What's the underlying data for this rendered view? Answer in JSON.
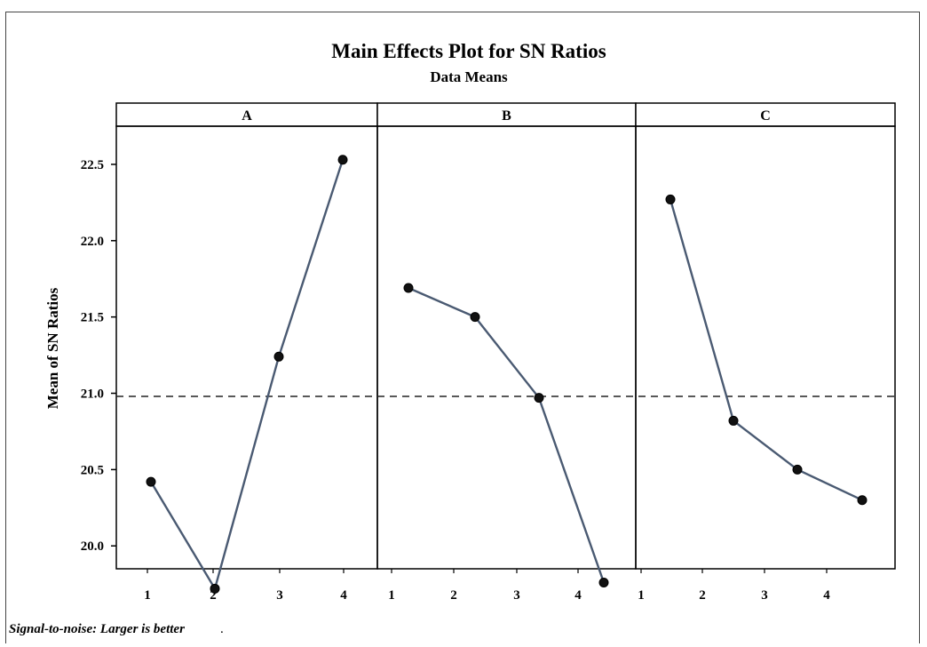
{
  "chart_data": {
    "type": "line",
    "title": "Main Effects Plot for SN Ratios",
    "subtitle": "Data Means",
    "ylabel": "Mean of SN Ratios",
    "ylim": [
      19.85,
      22.75
    ],
    "yticks": [
      "20.0",
      "20.5",
      "21.0",
      "21.5",
      "22.0",
      "22.5"
    ],
    "reference_line": 20.98,
    "footnote": "Signal-to-noise: Larger is better",
    "footnote_dot": ".",
    "line_color": "#4a5a72",
    "panels": [
      {
        "name": "A",
        "x_labels": [
          "1",
          "2",
          "3",
          "4"
        ],
        "x": [
          1,
          2,
          3,
          4
        ],
        "values": [
          20.42,
          19.72,
          21.24,
          22.53
        ]
      },
      {
        "name": "B",
        "x_labels": [
          "1",
          "2",
          "3",
          "4"
        ],
        "x": [
          1,
          2,
          3,
          4
        ],
        "values": [
          21.69,
          21.5,
          20.97,
          19.76
        ]
      },
      {
        "name": "C",
        "x_labels": [
          "1",
          "2",
          "3",
          "4"
        ],
        "x": [
          1,
          2,
          3,
          4
        ],
        "values": [
          22.27,
          20.82,
          20.5,
          20.3
        ]
      }
    ]
  }
}
